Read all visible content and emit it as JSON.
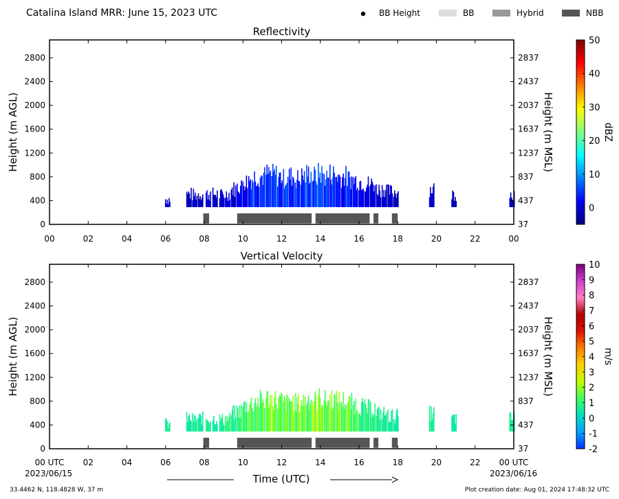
{
  "header": {
    "title": "Catalina Island MRR:  June 15, 2023 UTC",
    "legend": [
      {
        "label": "BB Height",
        "kind": "dot",
        "color": "#000000"
      },
      {
        "label": "BB",
        "kind": "rect",
        "color": "#dddddd"
      },
      {
        "label": "Hybrid",
        "kind": "rect",
        "color": "#999999"
      },
      {
        "label": "NBB",
        "kind": "rect",
        "color": "#555555"
      }
    ]
  },
  "footer": {
    "location": "33.4462 N, 118.4828 W, 37 m",
    "creation": "Plot creation date: Aug 01, 2024 17:48:32 UTC",
    "time_label": "Time (UTC)",
    "date_start": "2023/06/15",
    "date_end": "2023/06/16"
  },
  "chart_data": [
    {
      "type": "heatmap",
      "title": "Reflectivity",
      "ylabel": "Height (m AGL)",
      "ylabel_right": "Height (m MSL)",
      "xlim": [
        0,
        24
      ],
      "ylim": [
        0,
        3100
      ],
      "xticks": [
        "00",
        "02",
        "04",
        "06",
        "08",
        "10",
        "12",
        "14",
        "16",
        "18",
        "20",
        "22",
        "00"
      ],
      "yticks": [
        0,
        400,
        800,
        1200,
        1600,
        2000,
        2400,
        2800
      ],
      "yticks_right": [
        "37",
        "437",
        "837",
        "1237",
        "1637",
        "2037",
        "2437",
        "2837"
      ],
      "colorbar": {
        "label": "dBZ",
        "min": -5,
        "max": 50,
        "ticks": [
          0,
          10,
          20,
          30,
          40,
          50
        ],
        "colors": [
          "#00007f",
          "#0000ff",
          "#0080ff",
          "#00ffff",
          "#80ff80",
          "#ffff00",
          "#ff8000",
          "#ff0000",
          "#7f0000"
        ]
      },
      "echo_profile": [
        {
          "t": 6.1,
          "top": 500,
          "v": 2
        },
        {
          "t": 7.2,
          "top": 600,
          "v": 1
        },
        {
          "t": 7.5,
          "top": 580,
          "v": 2
        },
        {
          "t": 7.8,
          "top": 600,
          "v": 1
        },
        {
          "t": 8.2,
          "top": 600,
          "v": 3
        },
        {
          "t": 8.55,
          "top": 600,
          "v": 1
        },
        {
          "t": 8.9,
          "top": 580,
          "v": 2
        },
        {
          "t": 9.2,
          "top": 600,
          "v": 3
        },
        {
          "t": 9.5,
          "top": 700,
          "v": 2
        },
        {
          "t": 9.8,
          "top": 750,
          "v": 4
        },
        {
          "t": 10.1,
          "top": 850,
          "v": 5
        },
        {
          "t": 10.4,
          "top": 900,
          "v": 7
        },
        {
          "t": 10.7,
          "top": 950,
          "v": 6
        },
        {
          "t": 11.0,
          "top": 950,
          "v": 7
        },
        {
          "t": 11.3,
          "top": 1000,
          "v": 6
        },
        {
          "t": 11.6,
          "top": 980,
          "v": 8
        },
        {
          "t": 11.9,
          "top": 950,
          "v": 7
        },
        {
          "t": 12.2,
          "top": 900,
          "v": 8
        },
        {
          "t": 12.5,
          "top": 950,
          "v": 7
        },
        {
          "t": 12.8,
          "top": 900,
          "v": 9
        },
        {
          "t": 13.1,
          "top": 950,
          "v": 8
        },
        {
          "t": 13.4,
          "top": 1000,
          "v": 7
        },
        {
          "t": 13.7,
          "top": 950,
          "v": 8
        },
        {
          "t": 14.0,
          "top": 1000,
          "v": 9
        },
        {
          "t": 14.3,
          "top": 950,
          "v": 7
        },
        {
          "t": 14.6,
          "top": 1000,
          "v": 8
        },
        {
          "t": 14.9,
          "top": 950,
          "v": 7
        },
        {
          "t": 15.2,
          "top": 950,
          "v": 6
        },
        {
          "t": 15.5,
          "top": 900,
          "v": 6
        },
        {
          "t": 15.8,
          "top": 880,
          "v": 5
        },
        {
          "t": 16.1,
          "top": 850,
          "v": 4
        },
        {
          "t": 16.4,
          "top": 800,
          "v": 3
        },
        {
          "t": 16.7,
          "top": 800,
          "v": 3
        },
        {
          "t": 17.0,
          "top": 700,
          "v": 2
        },
        {
          "t": 17.3,
          "top": 700,
          "v": 2
        },
        {
          "t": 17.6,
          "top": 650,
          "v": 2
        },
        {
          "t": 17.9,
          "top": 650,
          "v": 1
        },
        {
          "t": 19.75,
          "top": 700,
          "v": 2
        },
        {
          "t": 20.9,
          "top": 600,
          "v": 1
        },
        {
          "t": 23.9,
          "top": 600,
          "v": 2
        }
      ],
      "bb_segments": [
        {
          "start": 7.95,
          "end": 8.25,
          "type": "NBB"
        },
        {
          "start": 9.7,
          "end": 13.55,
          "type": "NBB"
        },
        {
          "start": 13.75,
          "end": 16.55,
          "type": "NBB"
        },
        {
          "start": 16.75,
          "end": 17.0,
          "type": "NBB"
        },
        {
          "start": 17.7,
          "end": 18.0,
          "type": "NBB"
        }
      ]
    },
    {
      "type": "heatmap",
      "title": "Vertical Velocity",
      "ylabel": "Height (m AGL)",
      "ylabel_right": "Height (m MSL)",
      "xlim": [
        0,
        24
      ],
      "ylim": [
        0,
        3100
      ],
      "xticks": [
        "00 UTC",
        "02",
        "04",
        "06",
        "08",
        "10",
        "12",
        "14",
        "16",
        "18",
        "20",
        "22",
        "00 UTC"
      ],
      "yticks": [
        0,
        400,
        800,
        1200,
        1600,
        2000,
        2400,
        2800
      ],
      "yticks_right": [
        "37",
        "437",
        "837",
        "1237",
        "1637",
        "2037",
        "2437",
        "2837"
      ],
      "colorbar": {
        "label": "m/s",
        "min": -2,
        "max": 10,
        "ticks": [
          -2,
          -1,
          0,
          1,
          2,
          3,
          4,
          5,
          6,
          7,
          8,
          9,
          10
        ],
        "colors": [
          "#0033ff",
          "#00a0ff",
          "#00e0c0",
          "#40ff60",
          "#c0ff00",
          "#ffd000",
          "#ff8000",
          "#e01000",
          "#b00000",
          "#ff80c0",
          "#d040d0",
          "#800080"
        ]
      },
      "bb_segments": [
        {
          "start": 7.95,
          "end": 8.25,
          "type": "NBB"
        },
        {
          "start": 9.7,
          "end": 13.55,
          "type": "NBB"
        },
        {
          "start": 13.75,
          "end": 16.55,
          "type": "NBB"
        },
        {
          "start": 16.75,
          "end": 17.0,
          "type": "NBB"
        },
        {
          "start": 17.7,
          "end": 18.0,
          "type": "NBB"
        }
      ]
    }
  ]
}
